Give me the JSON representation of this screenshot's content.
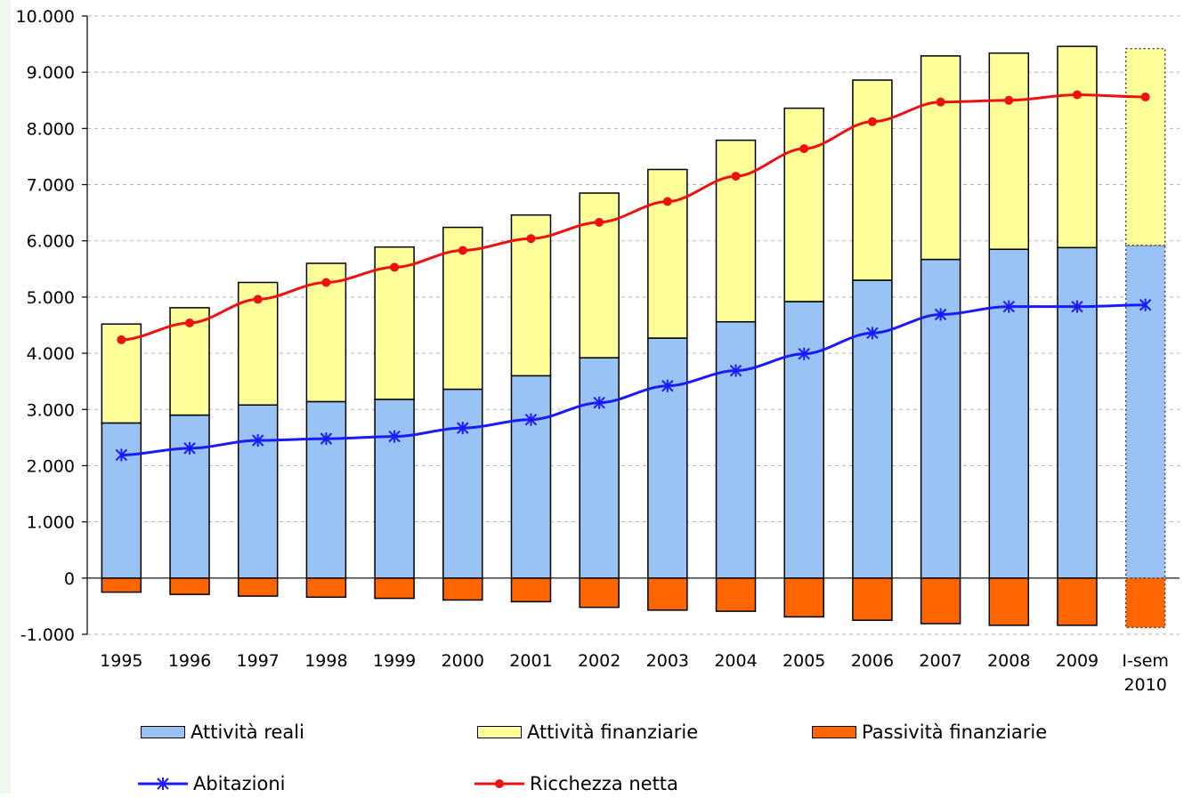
{
  "chart_data": {
    "type": "bar",
    "stacked": true,
    "categories": [
      "1995",
      "1996",
      "1997",
      "1998",
      "1999",
      "2000",
      "2001",
      "2002",
      "2003",
      "2004",
      "2005",
      "2006",
      "2007",
      "2008",
      "2009",
      "I-sem 2010"
    ],
    "ylim": [
      -1000,
      10000
    ],
    "yticks": [
      -1000,
      0,
      1000,
      2000,
      3000,
      4000,
      5000,
      6000,
      7000,
      8000,
      9000,
      10000
    ],
    "ytick_labels": [
      "-1.000",
      "0",
      "1.000",
      "2.000",
      "3.000",
      "4.000",
      "5.000",
      "6.000",
      "7.000",
      "8.000",
      "9.000",
      "10.000"
    ],
    "grid": "horizontal dashed",
    "legend_position": "bottom",
    "series": [
      {
        "name": "Attività reali",
        "kind": "bar",
        "color": "#99c3f5",
        "values": [
          2760,
          2900,
          3080,
          3140,
          3180,
          3360,
          3600,
          3920,
          4270,
          4560,
          4920,
          5300,
          5670,
          5850,
          5880,
          5920
        ]
      },
      {
        "name": "Attività finanziarie",
        "kind": "bar",
        "color": "#ffff99",
        "values": [
          1760,
          1910,
          2180,
          2460,
          2710,
          2880,
          2860,
          2930,
          3000,
          3230,
          3440,
          3560,
          3620,
          3490,
          3580,
          3500
        ]
      },
      {
        "name": "Passività finanziarie",
        "kind": "bar",
        "color": "#ff6600",
        "values": [
          -250,
          -290,
          -320,
          -340,
          -360,
          -390,
          -420,
          -520,
          -570,
          -590,
          -690,
          -750,
          -810,
          -840,
          -840,
          -880
        ]
      },
      {
        "name": "Abitazioni",
        "kind": "line",
        "color": "#1a1aff",
        "values": [
          2190,
          2310,
          2450,
          2480,
          2520,
          2670,
          2820,
          3120,
          3420,
          3690,
          3990,
          4360,
          4690,
          4830,
          4830,
          4860
        ]
      },
      {
        "name": "Ricchezza netta",
        "kind": "line",
        "color": "#ee1111",
        "values": [
          4240,
          4540,
          4960,
          5260,
          5530,
          5830,
          6040,
          6330,
          6700,
          7150,
          7640,
          8120,
          8470,
          8500,
          8600,
          8560
        ]
      }
    ],
    "estimated_category": "I-sem 2010"
  }
}
